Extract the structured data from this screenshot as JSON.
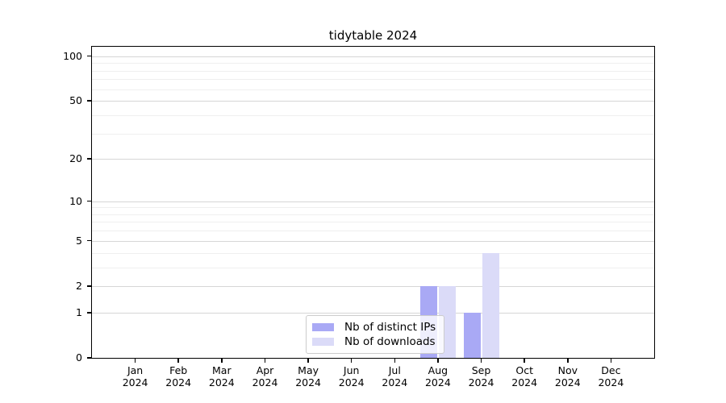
{
  "title": "tidytable 2024",
  "legend": {
    "items": [
      {
        "label": "Nb of distinct IPs"
      },
      {
        "label": "Nb of downloads"
      }
    ]
  },
  "chart_data": {
    "type": "bar",
    "title": "tidytable 2024",
    "categories": [
      "Jan 2024",
      "Feb 2024",
      "Mar 2024",
      "Apr 2024",
      "May 2024",
      "Jun 2024",
      "Jul 2024",
      "Aug 2024",
      "Sep 2024",
      "Oct 2024",
      "Nov 2024",
      "Dec 2024"
    ],
    "series": [
      {
        "name": "Nb of distinct IPs",
        "color": "#a9a9f5",
        "values": [
          0,
          0,
          0,
          0,
          0,
          0,
          0,
          2,
          1,
          0,
          0,
          0
        ]
      },
      {
        "name": "Nb of downloads",
        "color": "#dbdbf8",
        "values": [
          0,
          0,
          0,
          0,
          0,
          0,
          0,
          2,
          4,
          0,
          0,
          0
        ]
      }
    ],
    "xlabel": "",
    "ylabel": "",
    "y_scale": "log1p",
    "y_ticks": [
      0,
      1,
      2,
      5,
      10,
      20,
      50,
      100
    ],
    "y_minor_grid": [
      3,
      4,
      6,
      7,
      8,
      9,
      30,
      40,
      60,
      70,
      80,
      90
    ],
    "y_max_tick": 100,
    "grid": "horizontal",
    "legend_position": "lower center"
  },
  "colors": {
    "major_grid": "#d6d6d6",
    "minor_grid": "#efefef",
    "axis": "#000000",
    "legend_border": "#cccccc"
  }
}
